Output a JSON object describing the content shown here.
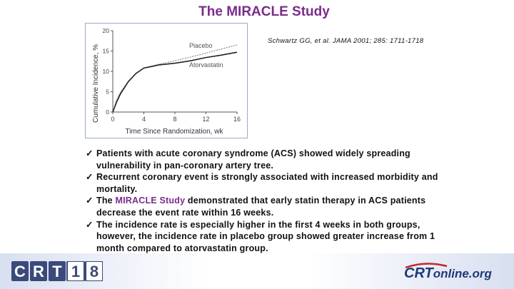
{
  "slide": {
    "title": "The MIRACLE Study",
    "citation": "Schwartz GG, et al. JAMA 2001; 285: 1711-1718"
  },
  "figure": {
    "ylabel": "Cumulative Incidence, %",
    "xlabel": "Time Since Randomization, wk",
    "y_ticks": [
      "0",
      "5",
      "10",
      "15",
      "20"
    ],
    "x_ticks": [
      "0",
      "4",
      "8",
      "12",
      "16"
    ],
    "series_labels": {
      "placebo": "Placebo",
      "atorvastatin": "Atorvastatin"
    }
  },
  "bullets": [
    {
      "pre": "Patients with acute coronary syndrome (ACS) showed widely spreading vulnerability in pan-coronary artery tree.",
      "accent": "",
      "post": ""
    },
    {
      "pre": "Recurrent coronary event is strongly associated with increased morbidity and mortality.",
      "accent": "",
      "post": ""
    },
    {
      "pre": "The ",
      "accent": "MIRACLE Study",
      "post": " demonstrated that early statin therapy in ACS patients decrease the event rate within 16 weeks."
    },
    {
      "pre": "The incidence rate is especially higher in the first 4 weeks in both groups, however, the incidence rate in placebo group showed greater increase from 1 month compared to atorvastatin group.",
      "accent": "",
      "post": ""
    }
  ],
  "bullet_marker": "ü",
  "footer": {
    "crt_logo": [
      "C",
      "R",
      "T",
      "1",
      "8"
    ],
    "crtonline_logo": {
      "main": "CRT",
      "suffix": "online.org"
    }
  },
  "chart_data": {
    "type": "line",
    "xlabel": "Time Since Randomization, wk",
    "ylabel": "Cumulative Incidence, %",
    "xlim": [
      0,
      16
    ],
    "ylim": [
      0,
      20
    ],
    "x_ticks": [
      0,
      4,
      8,
      12,
      16
    ],
    "y_ticks": [
      0,
      5,
      10,
      15,
      20
    ],
    "series": [
      {
        "name": "Placebo",
        "style": "dotted",
        "x": [
          0,
          0.5,
          1,
          2,
          3,
          4,
          5,
          6,
          8,
          10,
          12,
          14,
          16
        ],
        "y": [
          0,
          3.0,
          5.0,
          7.5,
          9.5,
          10.8,
          11.3,
          11.8,
          12.6,
          13.5,
          14.5,
          15.5,
          16.5
        ]
      },
      {
        "name": "Atorvastatin",
        "style": "solid",
        "x": [
          0,
          0.5,
          1,
          2,
          3,
          4,
          5,
          6,
          8,
          10,
          12,
          14,
          16
        ],
        "y": [
          0,
          2.5,
          4.5,
          7.5,
          9.5,
          10.8,
          11.2,
          11.6,
          12.0,
          12.6,
          13.4,
          14.0,
          14.7
        ]
      }
    ]
  }
}
